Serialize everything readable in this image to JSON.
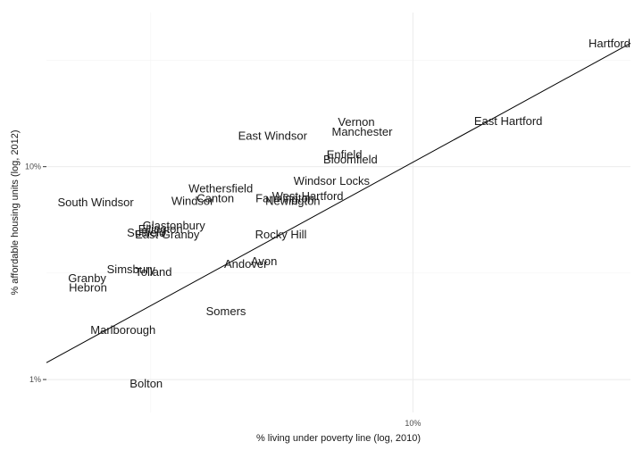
{
  "chart_data": {
    "type": "scatter",
    "title": "",
    "xlabel": "% living under poverty line (log, 2010)",
    "ylabel": "% affordable housing units (log, 2012)",
    "x_scale": "log10",
    "y_scale": "log10",
    "xlim": [
      2.0,
      26.0
    ],
    "ylim": [
      0.7,
      53.0
    ],
    "x_ticks": [
      {
        "value": 10,
        "label": "10%"
      }
    ],
    "y_ticks": [
      {
        "value": 1,
        "label": "1%"
      },
      {
        "value": 10,
        "label": "10%"
      }
    ],
    "grid": true,
    "points": [
      {
        "label": "Hartford",
        "x": 26.0,
        "y": 38.0
      },
      {
        "label": "East Hartford",
        "x": 15.2,
        "y": 16.4
      },
      {
        "label": "Vernon",
        "x": 7.8,
        "y": 16.2
      },
      {
        "label": "Manchester",
        "x": 8.0,
        "y": 14.6
      },
      {
        "label": "East Windsor",
        "x": 5.4,
        "y": 14.0
      },
      {
        "label": "Enfield",
        "x": 7.4,
        "y": 11.4
      },
      {
        "label": "Bloomfield",
        "x": 7.6,
        "y": 10.8
      },
      {
        "label": "Windsor Locks",
        "x": 7.0,
        "y": 8.6
      },
      {
        "label": "Wethersfield",
        "x": 4.3,
        "y": 7.9
      },
      {
        "label": "West Hartford",
        "x": 6.3,
        "y": 7.3
      },
      {
        "label": "Farmington",
        "x": 5.7,
        "y": 7.1
      },
      {
        "label": "Canton",
        "x": 4.2,
        "y": 7.1
      },
      {
        "label": "Windsor",
        "x": 3.8,
        "y": 6.9
      },
      {
        "label": "Newington",
        "x": 5.9,
        "y": 6.9
      },
      {
        "label": "South Windsor",
        "x": 2.1,
        "y": 6.8
      },
      {
        "label": "Glastonbury",
        "x": 3.5,
        "y": 5.3
      },
      {
        "label": "Ellington",
        "x": 3.3,
        "y": 5.1
      },
      {
        "label": "Suffield",
        "x": 3.1,
        "y": 4.9
      },
      {
        "label": "East Granby",
        "x": 3.4,
        "y": 4.8
      },
      {
        "label": "Rocky Hill",
        "x": 5.6,
        "y": 4.8
      },
      {
        "label": "Avon",
        "x": 5.2,
        "y": 3.6
      },
      {
        "label": "Andover",
        "x": 4.8,
        "y": 3.5
      },
      {
        "label": "Simsbury",
        "x": 2.9,
        "y": 3.3
      },
      {
        "label": "Tolland",
        "x": 3.2,
        "y": 3.2
      },
      {
        "label": "Granby",
        "x": 2.2,
        "y": 3.0
      },
      {
        "label": "Hebron",
        "x": 2.4,
        "y": 2.7
      },
      {
        "label": "Somers",
        "x": 4.4,
        "y": 2.1
      },
      {
        "label": "Marlborough",
        "x": 2.8,
        "y": 1.71
      },
      {
        "label": "Bolton",
        "x": 3.1,
        "y": 0.96
      }
    ],
    "fit_line": {
      "x": [
        2.0,
        26.0
      ],
      "y": [
        1.2,
        38.0
      ]
    }
  }
}
